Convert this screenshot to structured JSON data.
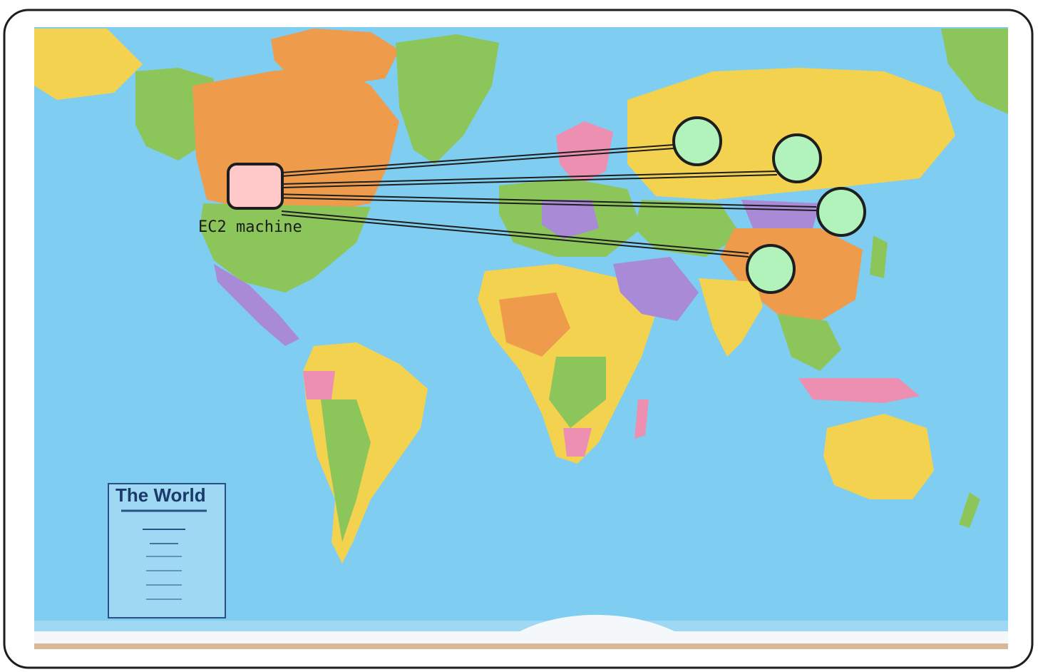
{
  "diagram": {
    "source_node": {
      "label": "EC2 machine",
      "fill": "#ffc9c9",
      "stroke": "#1e1e1e"
    },
    "target_nodes": [
      {
        "fill": "#b2f2bb",
        "stroke": "#1e1e1e"
      },
      {
        "fill": "#b2f2bb",
        "stroke": "#1e1e1e"
      },
      {
        "fill": "#b2f2bb",
        "stroke": "#1e1e1e"
      },
      {
        "fill": "#b2f2bb",
        "stroke": "#1e1e1e"
      }
    ],
    "connector_color": "#1e1e1e"
  },
  "map": {
    "legend_title": "The World",
    "colors": {
      "ocean": "#7fcdf0",
      "ocean_deep": "#5fbce8",
      "yellow": "#f3d24f",
      "orange": "#ef9b4c",
      "green": "#8cc65a",
      "purple": "#a98ad6",
      "pink": "#ec8fb0",
      "ice": "#f4f8fa",
      "frame": "#1e1e1e"
    }
  }
}
